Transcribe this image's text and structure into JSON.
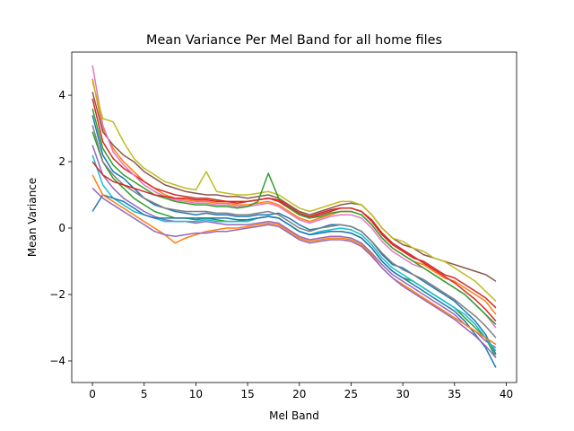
{
  "chart_data": {
    "type": "line",
    "title": "Mean Variance Per Mel Band for all home files",
    "xlabel": "Mel Band",
    "ylabel": "Mean Variance",
    "xlim": [
      -2,
      41
    ],
    "ylim": [
      -4.65,
      5.3
    ],
    "xticks": [
      0,
      5,
      10,
      15,
      20,
      25,
      30,
      35,
      40
    ],
    "yticks": [
      -4,
      -2,
      0,
      2,
      4
    ],
    "grid": false,
    "legend": "none",
    "x": [
      0,
      1,
      2,
      3,
      4,
      5,
      6,
      7,
      8,
      9,
      10,
      11,
      12,
      13,
      14,
      15,
      16,
      17,
      18,
      19,
      20,
      21,
      22,
      23,
      24,
      25,
      26,
      27,
      28,
      29,
      30,
      31,
      32,
      33,
      34,
      35,
      36,
      37,
      38,
      39
    ],
    "series_count_note": "many overlapping series",
    "representative_series": [
      {
        "color": "#1f77b4",
        "values": [
          3.4,
          2.2,
          1.7,
          1.5,
          1.2,
          0.9,
          0.7,
          0.6,
          0.5,
          0.45,
          0.4,
          0.45,
          0.4,
          0.4,
          0.35,
          0.35,
          0.4,
          0.4,
          0.45,
          0.3,
          0.1,
          -0.05,
          0.0,
          0.1,
          0.1,
          0.05,
          -0.1,
          -0.4,
          -0.8,
          -1.1,
          -1.2,
          -1.4,
          -1.6,
          -1.8,
          -2.0,
          -2.2,
          -2.5,
          -2.8,
          -3.2,
          -3.8
        ]
      },
      {
        "color": "#ff7f0e",
        "values": [
          4.5,
          3.0,
          2.4,
          2.0,
          1.7,
          1.4,
          1.2,
          1.0,
          0.9,
          0.85,
          0.8,
          0.8,
          0.75,
          0.75,
          0.7,
          0.7,
          0.75,
          0.8,
          0.7,
          0.5,
          0.3,
          0.2,
          0.3,
          0.4,
          0.5,
          0.5,
          0.4,
          0.1,
          -0.3,
          -0.6,
          -0.8,
          -1.0,
          -1.1,
          -1.3,
          -1.5,
          -1.6,
          -1.8,
          -2.0,
          -2.2,
          -2.6
        ]
      },
      {
        "color": "#2ca02c",
        "values": [
          2.9,
          2.0,
          1.5,
          1.2,
          0.9,
          0.7,
          0.5,
          0.4,
          0.3,
          0.3,
          0.25,
          0.3,
          0.25,
          0.2,
          0.2,
          0.25,
          0.3,
          0.35,
          0.3,
          0.1,
          -0.1,
          -0.2,
          -0.15,
          -0.1,
          -0.1,
          -0.15,
          -0.3,
          -0.6,
          -1.0,
          -1.3,
          -1.5,
          -1.6,
          -1.8,
          -2.0,
          -2.2,
          -2.4,
          -2.7,
          -3.0,
          -3.3,
          -3.9
        ]
      },
      {
        "color": "#d62728",
        "values": [
          3.9,
          2.6,
          2.1,
          1.8,
          1.6,
          1.4,
          1.2,
          1.1,
          1.0,
          0.95,
          0.9,
          0.9,
          0.85,
          0.8,
          0.8,
          0.8,
          0.85,
          0.9,
          0.8,
          0.6,
          0.4,
          0.3,
          0.4,
          0.5,
          0.6,
          0.6,
          0.5,
          0.2,
          -0.2,
          -0.5,
          -0.7,
          -0.9,
          -1.0,
          -1.2,
          -1.4,
          -1.5,
          -1.7,
          -1.9,
          -2.1,
          -2.4
        ]
      },
      {
        "color": "#9467bd",
        "values": [
          2.5,
          1.6,
          1.2,
          0.9,
          0.7,
          0.5,
          0.35,
          0.25,
          0.2,
          0.2,
          0.15,
          0.2,
          0.15,
          0.1,
          0.1,
          0.1,
          0.15,
          0.2,
          0.15,
          -0.05,
          -0.25,
          -0.35,
          -0.3,
          -0.25,
          -0.25,
          -0.3,
          -0.45,
          -0.75,
          -1.1,
          -1.4,
          -1.6,
          -1.8,
          -2.0,
          -2.2,
          -2.4,
          -2.6,
          -2.9,
          -3.1,
          -3.4,
          -3.6
        ]
      },
      {
        "color": "#8c564b",
        "values": [
          4.1,
          2.9,
          2.5,
          2.2,
          2.0,
          1.7,
          1.5,
          1.3,
          1.2,
          1.1,
          1.05,
          1.0,
          1.0,
          0.95,
          0.95,
          0.9,
          0.95,
          1.0,
          0.9,
          0.7,
          0.5,
          0.4,
          0.5,
          0.6,
          0.7,
          0.75,
          0.7,
          0.4,
          0.0,
          -0.3,
          -0.5,
          -0.6,
          -0.8,
          -0.9,
          -1.0,
          -1.1,
          -1.2,
          -1.3,
          -1.4,
          -1.6
        ]
      },
      {
        "color": "#e377c2",
        "values": [
          4.9,
          3.1,
          2.3,
          1.9,
          1.6,
          1.3,
          1.1,
          0.95,
          0.85,
          0.8,
          0.75,
          0.75,
          0.7,
          0.7,
          0.65,
          0.65,
          0.7,
          0.75,
          0.65,
          0.45,
          0.25,
          0.15,
          0.25,
          0.35,
          0.4,
          0.4,
          0.3,
          0.0,
          -0.4,
          -0.7,
          -0.9,
          -1.1,
          -1.2,
          -1.4,
          -1.6,
          -1.8,
          -2.0,
          -2.3,
          -2.6,
          -3.0
        ]
      },
      {
        "color": "#7f7f7f",
        "values": [
          3.1,
          2.0,
          1.6,
          1.3,
          1.1,
          0.9,
          0.75,
          0.6,
          0.55,
          0.5,
          0.5,
          0.5,
          0.45,
          0.45,
          0.4,
          0.4,
          0.45,
          0.5,
          0.4,
          0.2,
          0.0,
          -0.1,
          0.0,
          0.05,
          0.1,
          0.05,
          -0.1,
          -0.4,
          -0.75,
          -1.05,
          -1.25,
          -1.4,
          -1.55,
          -1.75,
          -1.95,
          -2.15,
          -2.4,
          -2.65,
          -2.95,
          -3.3
        ]
      },
      {
        "color": "#bcbd22",
        "values": [
          4.4,
          3.3,
          3.2,
          2.6,
          2.1,
          1.8,
          1.6,
          1.4,
          1.3,
          1.2,
          1.15,
          1.7,
          1.1,
          1.05,
          1.0,
          1.0,
          1.05,
          1.1,
          1.0,
          0.8,
          0.6,
          0.5,
          0.6,
          0.7,
          0.8,
          0.8,
          0.7,
          0.4,
          0.0,
          -0.3,
          -0.4,
          -0.6,
          -0.7,
          -0.9,
          -1.0,
          -1.2,
          -1.4,
          -1.6,
          -1.9,
          -2.2
        ]
      },
      {
        "color": "#17becf",
        "values": [
          2.2,
          1.3,
          0.9,
          0.7,
          0.5,
          0.4,
          0.3,
          0.2,
          0.2,
          0.2,
          0.2,
          0.25,
          0.2,
          0.2,
          0.2,
          0.2,
          0.3,
          0.35,
          0.3,
          0.1,
          -0.1,
          -0.2,
          -0.1,
          -0.05,
          0.0,
          -0.05,
          -0.2,
          -0.5,
          -0.9,
          -1.2,
          -1.4,
          -1.6,
          -1.8,
          -2.0,
          -2.2,
          -2.4,
          -2.6,
          -2.9,
          -3.3,
          -3.7
        ]
      },
      {
        "color": "#1f77b4",
        "values": [
          0.5,
          1.0,
          0.9,
          0.8,
          0.6,
          0.4,
          0.3,
          0.3,
          0.3,
          0.3,
          0.3,
          0.3,
          0.3,
          0.3,
          0.25,
          0.25,
          0.3,
          0.35,
          0.3,
          0.1,
          -0.1,
          -0.2,
          -0.15,
          -0.1,
          -0.1,
          -0.15,
          -0.3,
          -0.6,
          -1.0,
          -1.3,
          -1.5,
          -1.7,
          -1.9,
          -2.1,
          -2.3,
          -2.5,
          -2.8,
          -3.2,
          -3.6,
          -4.2
        ]
      },
      {
        "color": "#ff7f0e",
        "values": [
          1.6,
          1.0,
          0.8,
          0.6,
          0.4,
          0.2,
          0.0,
          -0.2,
          -0.45,
          -0.3,
          -0.2,
          -0.1,
          -0.05,
          0.0,
          0.0,
          0.05,
          0.1,
          0.15,
          0.1,
          -0.1,
          -0.3,
          -0.4,
          -0.35,
          -0.3,
          -0.3,
          -0.35,
          -0.5,
          -0.8,
          -1.2,
          -1.5,
          -1.7,
          -1.9,
          -2.1,
          -2.3,
          -2.5,
          -2.7,
          -2.9,
          -3.1,
          -3.3,
          -3.5
        ]
      },
      {
        "color": "#2ca02c",
        "values": [
          3.6,
          2.4,
          1.9,
          1.6,
          1.4,
          1.2,
          1.0,
          0.9,
          0.8,
          0.75,
          0.7,
          0.7,
          0.65,
          0.65,
          0.6,
          0.65,
          0.8,
          1.65,
          0.9,
          0.6,
          0.4,
          0.3,
          0.35,
          0.45,
          0.5,
          0.5,
          0.4,
          0.1,
          -0.3,
          -0.6,
          -0.8,
          -1.0,
          -1.2,
          -1.4,
          -1.6,
          -1.8,
          -2.0,
          -2.3,
          -2.6,
          -2.9
        ]
      },
      {
        "color": "#d62728",
        "values": [
          2.0,
          1.6,
          1.4,
          1.3,
          1.2,
          1.1,
          1.0,
          0.95,
          0.9,
          0.9,
          0.85,
          0.85,
          0.8,
          0.8,
          0.75,
          0.8,
          0.85,
          0.9,
          0.85,
          0.65,
          0.45,
          0.35,
          0.45,
          0.55,
          0.6,
          0.6,
          0.5,
          0.25,
          -0.15,
          -0.45,
          -0.65,
          -0.85,
          -1.05,
          -1.25,
          -1.45,
          -1.65,
          -1.9,
          -2.15,
          -2.45,
          -2.8
        ]
      },
      {
        "color": "#9467bd",
        "values": [
          1.2,
          0.9,
          0.7,
          0.5,
          0.3,
          0.1,
          -0.1,
          -0.2,
          -0.25,
          -0.2,
          -0.15,
          -0.15,
          -0.1,
          -0.1,
          -0.05,
          0.0,
          0.05,
          0.1,
          0.05,
          -0.15,
          -0.35,
          -0.45,
          -0.4,
          -0.35,
          -0.35,
          -0.4,
          -0.55,
          -0.85,
          -1.2,
          -1.5,
          -1.75,
          -1.95,
          -2.15,
          -2.35,
          -2.55,
          -2.75,
          -3.0,
          -3.25,
          -3.55,
          -3.9
        ]
      }
    ]
  }
}
